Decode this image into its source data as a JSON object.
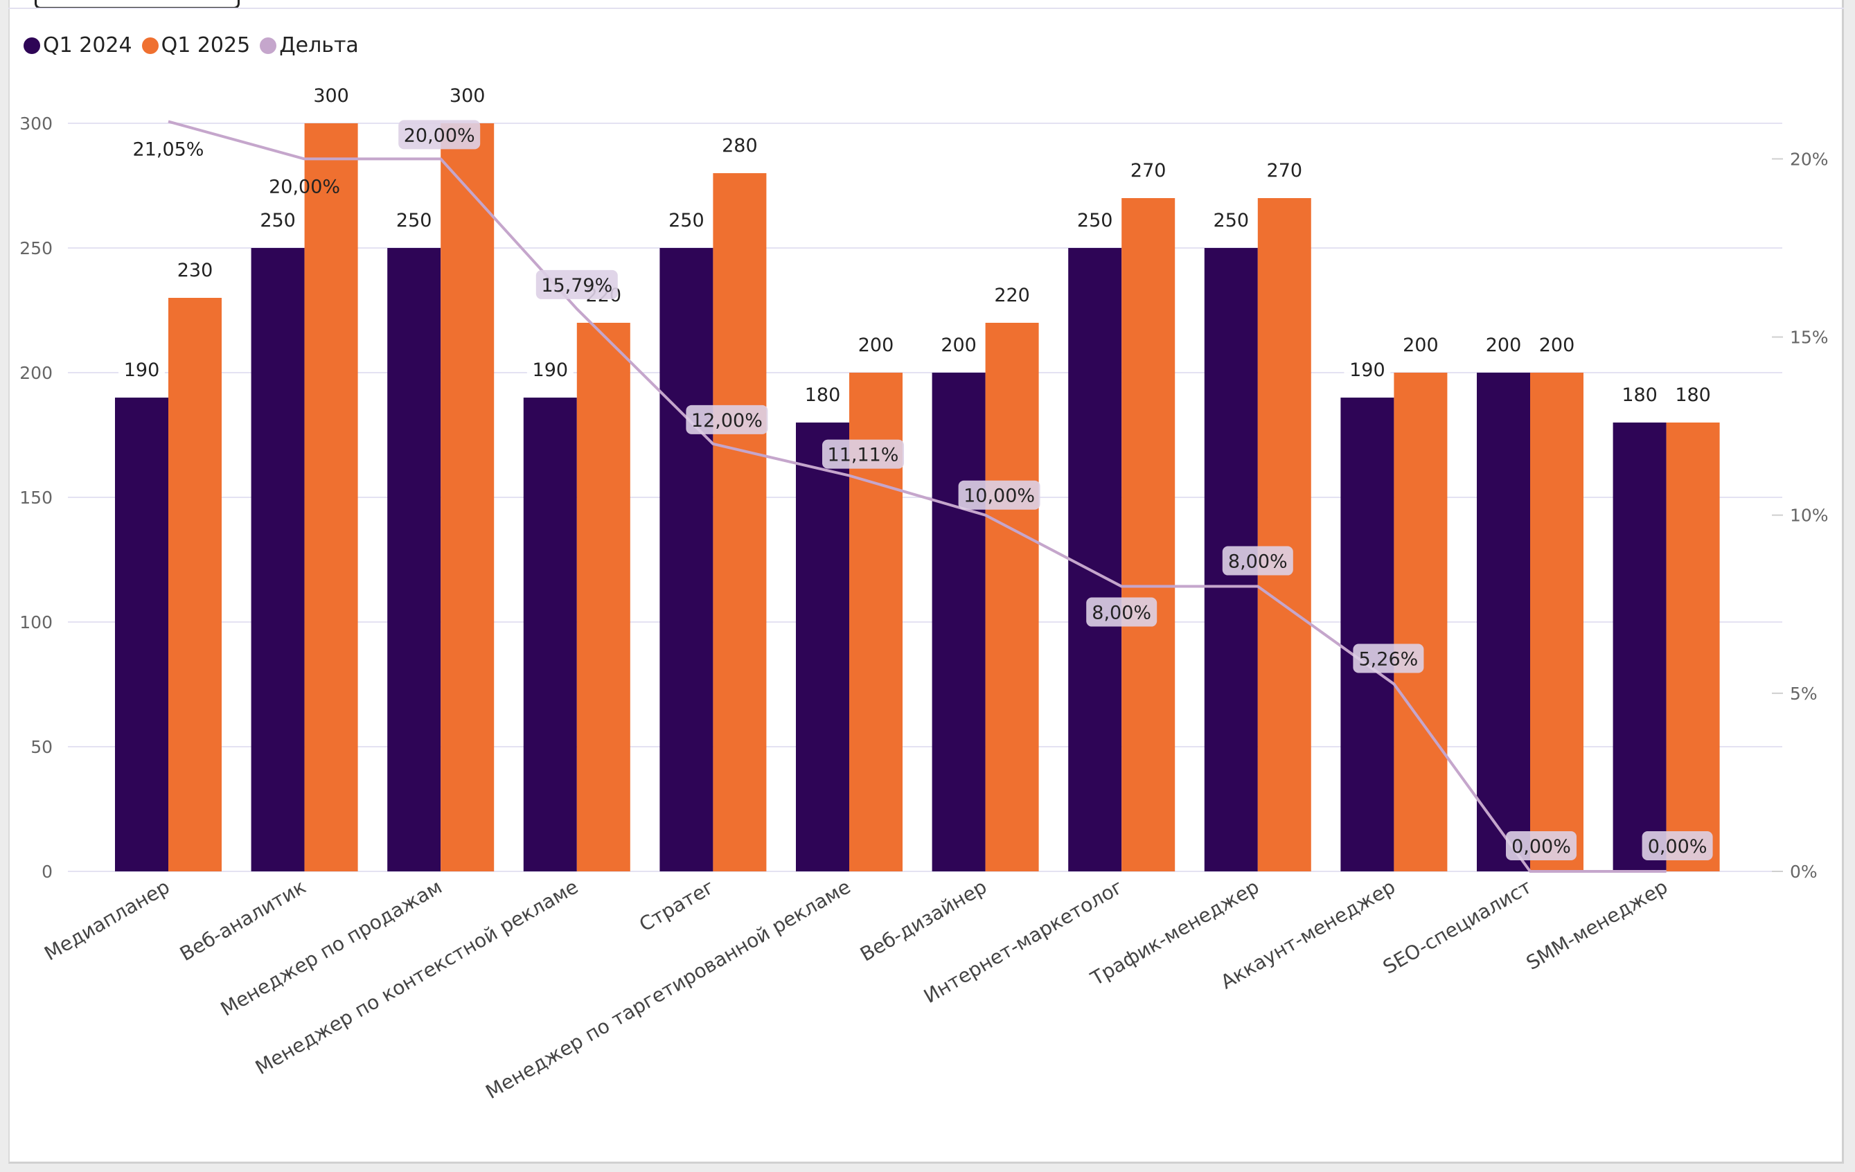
{
  "colors": {
    "q1_2024": "#2e0556",
    "q1_2025": "#ef7030",
    "delta": "#c5a6cc",
    "gridline": "#e4e2f2",
    "axis_text": "#666666",
    "label_text": "#222222",
    "label_bg_bar": "#ffffff",
    "label_bg_delta": "#ddd0e5"
  },
  "legend": {
    "items": [
      {
        "label": "Q1 2024",
        "color": "#2e0556"
      },
      {
        "label": "Q1 2025",
        "color": "#ef7030"
      },
      {
        "label": "Дельта",
        "color": "#c5a6cc"
      }
    ]
  },
  "chart_data": {
    "type": "bar",
    "title": "",
    "categories": [
      "Медиапланер",
      "Веб-аналитик",
      "Менеджер по продажам",
      "Менеджер по контекстной рекламе",
      "Стратег",
      "Менеджер по таргетированной рекламе",
      "Веб-дизайнер",
      "Интернет-маркетолог",
      "Трафик-менеджер",
      "Аккаунт-менеджер",
      "SEO-специалист",
      "SMM-менеджер"
    ],
    "series": [
      {
        "name": "Q1 2024",
        "type": "bar",
        "axis": "left",
        "values": [
          190,
          250,
          250,
          190,
          250,
          180,
          200,
          250,
          250,
          190,
          200,
          180
        ]
      },
      {
        "name": "Q1 2025",
        "type": "bar",
        "axis": "left",
        "values": [
          230,
          300,
          300,
          220,
          280,
          200,
          220,
          270,
          270,
          200,
          200,
          180
        ]
      },
      {
        "name": "Дельта",
        "type": "line",
        "axis": "right",
        "values": [
          21.05,
          20.0,
          20.0,
          15.79,
          12.0,
          11.11,
          10.0,
          8.0,
          8.0,
          5.26,
          0.0,
          0.0
        ]
      }
    ],
    "bar_labels_2024": [
      "190",
      "250",
      "250",
      "190",
      "250",
      "180",
      "200",
      "250",
      "250",
      "190",
      "200",
      "180"
    ],
    "bar_labels_2025": [
      "230",
      "300",
      "300",
      "220",
      "280",
      "200",
      "220",
      "270",
      "270",
      "200",
      "200",
      "180"
    ],
    "delta_labels": [
      "21,05%",
      "20,00%",
      "20,00%",
      "15,79%",
      "12,00%",
      "11,11%",
      "10,00%",
      "8,00%",
      "8,00%",
      "5,26%",
      "0,00%",
      "0,00%"
    ],
    "y_left": {
      "min": 0,
      "max": 300,
      "ticks": [
        "0",
        "50",
        "100",
        "150",
        "200",
        "250",
        "300"
      ]
    },
    "y_right": {
      "min": 0,
      "max": 21,
      "ticks": [
        "0%",
        "5%",
        "10%",
        "15%",
        "20%"
      ]
    },
    "grid": true,
    "legend_position": "top-left"
  }
}
